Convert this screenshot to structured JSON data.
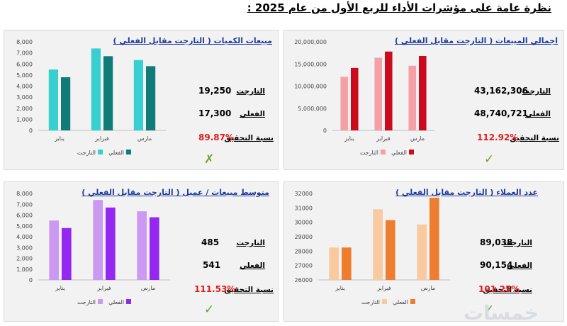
{
  "page": {
    "title": "نظرة عامة على مؤشرات الأداء للربع الأول من عام 2025 :",
    "watermark": "خمسات"
  },
  "labels": {
    "target": "التارجت",
    "actual": "الفعلي",
    "achievement": "نسبة التحقيق"
  },
  "colors": {
    "sales_target": "#f4a0a6",
    "sales_actual": "#cc0a1d",
    "qty_target": "#38cfd0",
    "qty_actual": "#0f7c78",
    "cust_target": "#f9c9a0",
    "cust_actual": "#ee7d2f",
    "avg_target": "#cc99f2",
    "avg_actual": "#9528f0",
    "achieve_red": "#e11b1b",
    "ok_green": "#6aa12a",
    "title_blue": "#1f3c9e"
  },
  "panels": [
    {
      "id": "total_sales",
      "title": "اجمالي المبيعات ( التارجت مقابل الفعلي )",
      "target_value": "43,162,306",
      "actual_value": "48,740,721",
      "achievement_value": "112.92%",
      "status_icon": "check-icon",
      "status_glyph": "✓"
    },
    {
      "id": "qty_sales",
      "title": "مبيعات الكميات ( التارجت مقابل الفعلي )",
      "target_value": "19,250",
      "actual_value": "17,300",
      "achievement_value": "89.87%",
      "status_icon": "cross-icon",
      "status_glyph": "✗"
    },
    {
      "id": "customers",
      "title": "عدد العملاء ( التارجت مقابل الفعلي )",
      "target_value": "89,038",
      "actual_value": "90,154",
      "achievement_value": "101.25%",
      "status_icon": "check-icon",
      "status_glyph": "✓"
    },
    {
      "id": "avg_sales",
      "title": "متوسط مبيعات / عميل ( التارجت مقابل الفعلي )",
      "target_value": "485",
      "actual_value": "541",
      "achievement_value": "111.53%",
      "status_icon": "check-icon",
      "status_glyph": "✓"
    }
  ],
  "chart_data": [
    {
      "type": "bar",
      "id": "total_sales",
      "categories": [
        "يناير",
        "فبراير",
        "مارس"
      ],
      "series": [
        {
          "name": "التارجت",
          "values": [
            12100000,
            16400000,
            14600000
          ]
        },
        {
          "name": "الفعلي",
          "values": [
            14100000,
            17800000,
            16800000
          ]
        }
      ],
      "ylim": [
        0,
        20000000
      ],
      "yticks": [
        "0",
        "5,000,000",
        "10,000,000",
        "15,000,000",
        "20,000,000"
      ],
      "ytick_values": [
        0,
        5000000,
        10000000,
        15000000,
        20000000
      ],
      "legend": "bottom",
      "grid": false
    },
    {
      "type": "bar",
      "id": "qty_sales",
      "categories": [
        "يناير",
        "فبراير",
        "مارس"
      ],
      "series": [
        {
          "name": "التارجت",
          "values": [
            5500,
            7400,
            6350
          ]
        },
        {
          "name": "الفعلي",
          "values": [
            4800,
            6700,
            5800
          ]
        }
      ],
      "ylim": [
        0,
        8000
      ],
      "yticks": [
        "0",
        "1,000",
        "2,000",
        "3,000",
        "4,000",
        "5,000",
        "6,000",
        "7,000",
        "8,000"
      ],
      "ytick_values": [
        0,
        1000,
        2000,
        3000,
        4000,
        5000,
        6000,
        7000,
        8000
      ],
      "legend": "bottom",
      "grid": false
    },
    {
      "type": "bar",
      "id": "customers",
      "categories": [
        "يناير",
        "فبراير",
        "مارس"
      ],
      "series": [
        {
          "name": "التارجت",
          "values": [
            28250,
            30900,
            29850
          ]
        },
        {
          "name": "الفعلي",
          "values": [
            28250,
            30150,
            31700
          ]
        }
      ],
      "ylim": [
        26000,
        32000
      ],
      "yticks": [
        "26000",
        "27000",
        "28000",
        "29000",
        "30000",
        "31000",
        "32000"
      ],
      "ytick_values": [
        26000,
        27000,
        28000,
        29000,
        30000,
        31000,
        32000
      ],
      "legend": "bottom",
      "grid": false
    },
    {
      "type": "bar",
      "id": "avg_sales",
      "categories": [
        "يناير",
        "فبراير",
        "مارس"
      ],
      "series": [
        {
          "name": "التارجت",
          "values": [
            5500,
            7400,
            6350
          ]
        },
        {
          "name": "الفعلي",
          "values": [
            4800,
            6700,
            5800
          ]
        }
      ],
      "ylim": [
        0,
        8000
      ],
      "yticks": [
        "0",
        "1,000",
        "2,000",
        "3,000",
        "4,000",
        "5,000",
        "6,000",
        "7,000",
        "8,000"
      ],
      "ytick_values": [
        0,
        1000,
        2000,
        3000,
        4000,
        5000,
        6000,
        7000,
        8000
      ],
      "legend": "bottom",
      "grid": false
    }
  ]
}
